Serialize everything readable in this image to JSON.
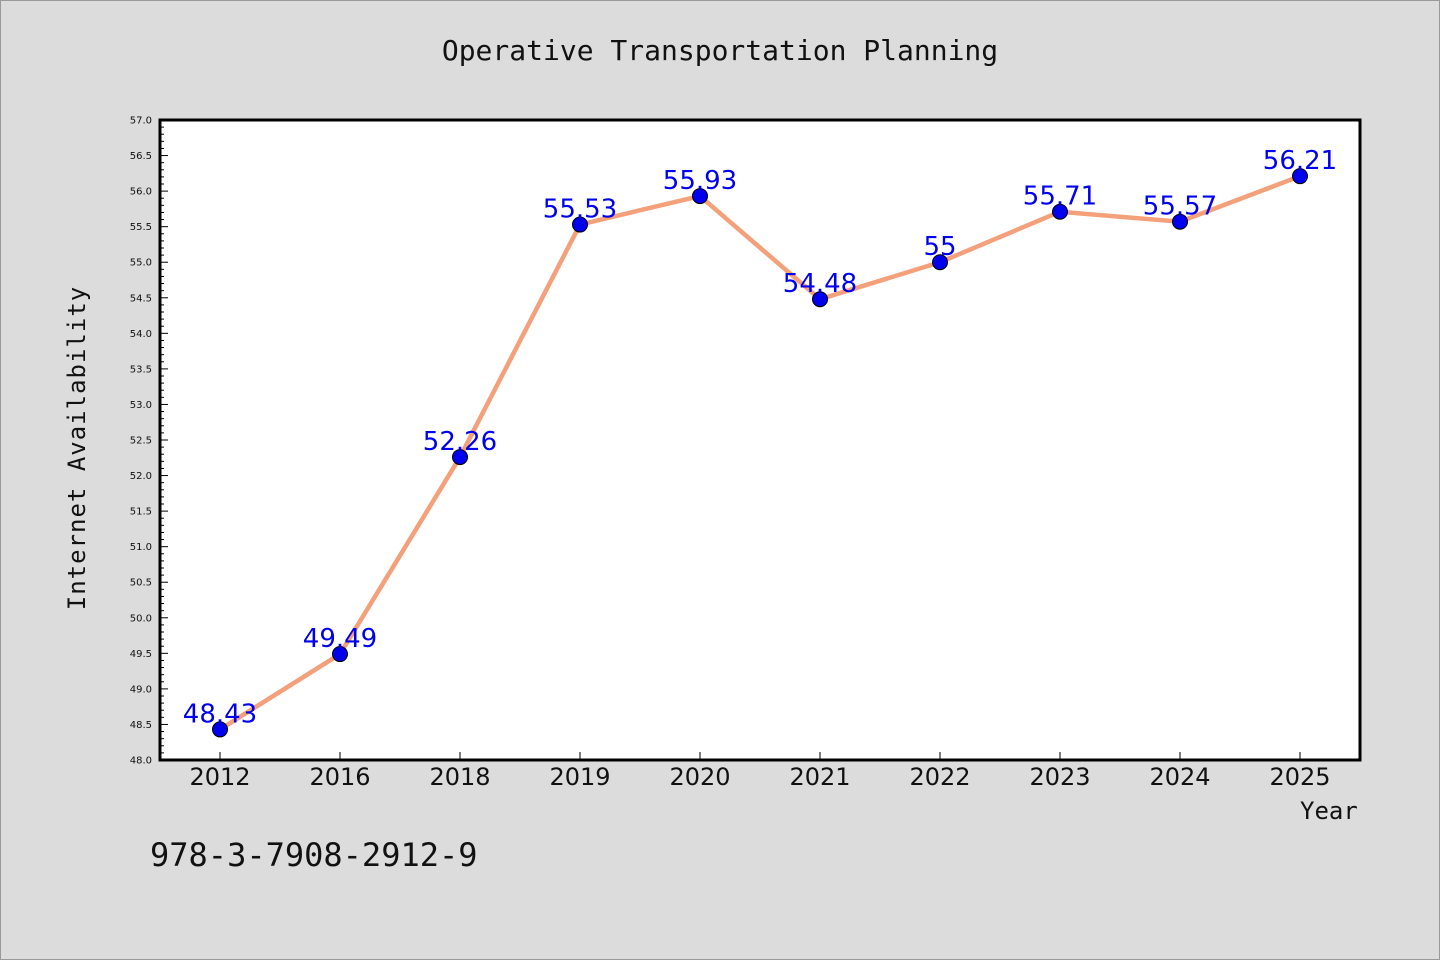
{
  "chart_data": {
    "type": "line",
    "title": "Operative Transportation Planning",
    "xlabel": "Year",
    "ylabel": "Internet Availability",
    "categories": [
      "2012",
      "2016",
      "2018",
      "2019",
      "2020",
      "2021",
      "2022",
      "2023",
      "2024",
      "2025"
    ],
    "values": [
      48.43,
      49.49,
      52.26,
      55.53,
      55.93,
      54.48,
      55,
      55.71,
      55.57,
      56.21
    ],
    "data_labels": [
      "48.43",
      "49.49",
      "52.26",
      "55.53",
      "55.93",
      "54.48",
      "55",
      "55.71",
      "55.57",
      "56.21"
    ],
    "ylim": [
      48.0,
      57.0
    ],
    "yticks": [
      "48.0",
      "48.5",
      "49.0",
      "49.5",
      "50.0",
      "50.5",
      "51.0",
      "51.5",
      "52.0",
      "52.5",
      "53.0",
      "53.5",
      "54.0",
      "54.5",
      "55.0",
      "55.5",
      "56.0",
      "56.5",
      "57.0"
    ],
    "grid": false,
    "legend": "none",
    "colors": {
      "line": "#f4a07a",
      "marker": "#0000ee",
      "label": "#0000ee",
      "background": "#dcdcdc",
      "plot_background": "#ffffff"
    }
  },
  "footer": {
    "isbn": "978-3-7908-2912-9"
  }
}
